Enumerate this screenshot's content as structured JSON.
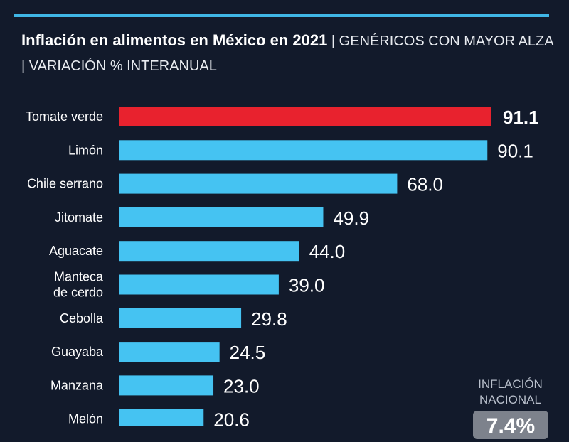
{
  "title": {
    "main": "Inflación en alimentos en México en 2021",
    "subtitle": " | GENÉRICOS CON MAYOR ALZA | VARIACIÓN % INTERANUAL"
  },
  "national": {
    "label": "INFLACIÓN NACIONAL",
    "value": "7.4%"
  },
  "colors": {
    "highlight": "#e8222e",
    "bar": "#45c3f2",
    "background": "#121a2b",
    "rule": "#3fb6e6"
  },
  "chart_data": {
    "type": "bar",
    "orientation": "horizontal",
    "title": "Inflación en alimentos en México en 2021",
    "categories": [
      "Tomate verde",
      "Limón",
      "Chile serrano",
      "Jitomate",
      "Aguacate",
      "Manteca de cerdo",
      "Cebolla",
      "Guayaba",
      "Manzana",
      "Melón"
    ],
    "values": [
      91.1,
      90.1,
      68.0,
      49.9,
      44.0,
      39.0,
      29.8,
      24.5,
      23.0,
      20.6
    ],
    "labels": [
      "91.1",
      "90.1",
      "68.0",
      "49.9",
      "44.0",
      "39.0",
      "29.8",
      "24.5",
      "23.0",
      "20.6"
    ],
    "highlight_index": 0,
    "grid": false,
    "xlim": [
      0,
      91.1
    ]
  }
}
